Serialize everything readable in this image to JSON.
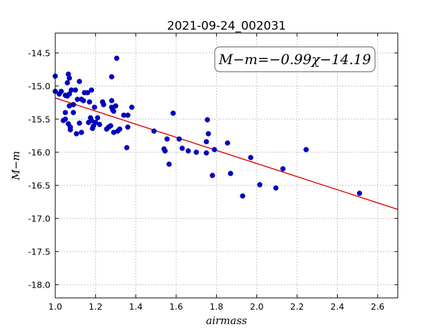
{
  "chart_data": {
    "type": "scatter",
    "title": "2021-09-24_002031",
    "xlabel": "airmass",
    "ylabel": "M−m",
    "xlim": [
      1.0,
      2.7
    ],
    "ylim": [
      -18.2,
      -14.2
    ],
    "y_inverted": true,
    "grid": true,
    "xticks": [
      "1.0",
      "1.2",
      "1.4",
      "1.6",
      "1.8",
      "2.0",
      "2.2",
      "2.4",
      "2.6"
    ],
    "yticks": [
      "-14.5",
      "-15.0",
      "-15.5",
      "-16.0",
      "-16.5",
      "-17.0",
      "-17.5",
      "-18.0"
    ],
    "annotation": "M−m=−0.99χ−14.19",
    "colors": {
      "points": "#0000cc",
      "fit_line": "#dd0000"
    },
    "fit_line": {
      "slope": -0.99,
      "intercept": -14.19
    },
    "points": [
      [
        1.0,
        -14.85
      ],
      [
        1.0,
        -15.08
      ],
      [
        1.02,
        -15.12
      ],
      [
        1.03,
        -15.08
      ],
      [
        1.04,
        -15.52
      ],
      [
        1.05,
        -15.5
      ],
      [
        1.05,
        -15.14
      ],
      [
        1.05,
        -15.4
      ],
      [
        1.06,
        -14.95
      ],
      [
        1.06,
        -15.15
      ],
      [
        1.065,
        -14.82
      ],
      [
        1.07,
        -14.88
      ],
      [
        1.065,
        -15.57
      ],
      [
        1.07,
        -15.3
      ],
      [
        1.07,
        -15.12
      ],
      [
        1.075,
        -15.62
      ],
      [
        1.075,
        -15.66
      ],
      [
        1.08,
        -15.06
      ],
      [
        1.09,
        -15.28
      ],
      [
        1.09,
        -15.4
      ],
      [
        1.1,
        -15.06
      ],
      [
        1.105,
        -15.72
      ],
      [
        1.11,
        -15.2
      ],
      [
        1.12,
        -14.93
      ],
      [
        1.12,
        -15.56
      ],
      [
        1.13,
        -15.2
      ],
      [
        1.13,
        -15.7
      ],
      [
        1.14,
        -15.22
      ],
      [
        1.145,
        -15.1
      ],
      [
        1.16,
        -15.1
      ],
      [
        1.165,
        -15.55
      ],
      [
        1.17,
        -15.24
      ],
      [
        1.175,
        -15.48
      ],
      [
        1.18,
        -15.06
      ],
      [
        1.18,
        -15.52
      ],
      [
        1.185,
        -15.64
      ],
      [
        1.19,
        -15.6
      ],
      [
        1.195,
        -15.32
      ],
      [
        1.2,
        -15.55
      ],
      [
        1.21,
        -15.48
      ],
      [
        1.22,
        -15.58
      ],
      [
        1.235,
        -15.24
      ],
      [
        1.24,
        -15.28
      ],
      [
        1.255,
        -15.65
      ],
      [
        1.265,
        -15.62
      ],
      [
        1.275,
        -15.6
      ],
      [
        1.28,
        -15.22
      ],
      [
        1.28,
        -15.32
      ],
      [
        1.28,
        -14.86
      ],
      [
        1.285,
        -15.36
      ],
      [
        1.29,
        -15.7
      ],
      [
        1.29,
        -15.38
      ],
      [
        1.3,
        -15.3
      ],
      [
        1.305,
        -14.58
      ],
      [
        1.31,
        -15.68
      ],
      [
        1.32,
        -15.65
      ],
      [
        1.34,
        -15.44
      ],
      [
        1.355,
        -15.93
      ],
      [
        1.36,
        -15.44
      ],
      [
        1.36,
        -15.62
      ],
      [
        1.38,
        -15.32
      ],
      [
        1.49,
        -15.68
      ],
      [
        1.54,
        -15.95
      ],
      [
        1.545,
        -15.98
      ],
      [
        1.555,
        -15.8
      ],
      [
        1.565,
        -16.18
      ],
      [
        1.585,
        -15.41
      ],
      [
        1.615,
        -15.8
      ],
      [
        1.63,
        -15.94
      ],
      [
        1.66,
        -15.98
      ],
      [
        1.7,
        -16.0
      ],
      [
        1.75,
        -16.01
      ],
      [
        1.75,
        -15.84
      ],
      [
        1.755,
        -15.51
      ],
      [
        1.76,
        -15.72
      ],
      [
        1.78,
        -16.35
      ],
      [
        1.79,
        -15.96
      ],
      [
        1.855,
        -15.86
      ],
      [
        1.87,
        -16.32
      ],
      [
        1.93,
        -16.66
      ],
      [
        1.97,
        -16.08
      ],
      [
        2.015,
        -16.49
      ],
      [
        2.095,
        -16.54
      ],
      [
        2.13,
        -16.25
      ],
      [
        2.245,
        -15.96
      ],
      [
        2.51,
        -16.62
      ]
    ]
  }
}
